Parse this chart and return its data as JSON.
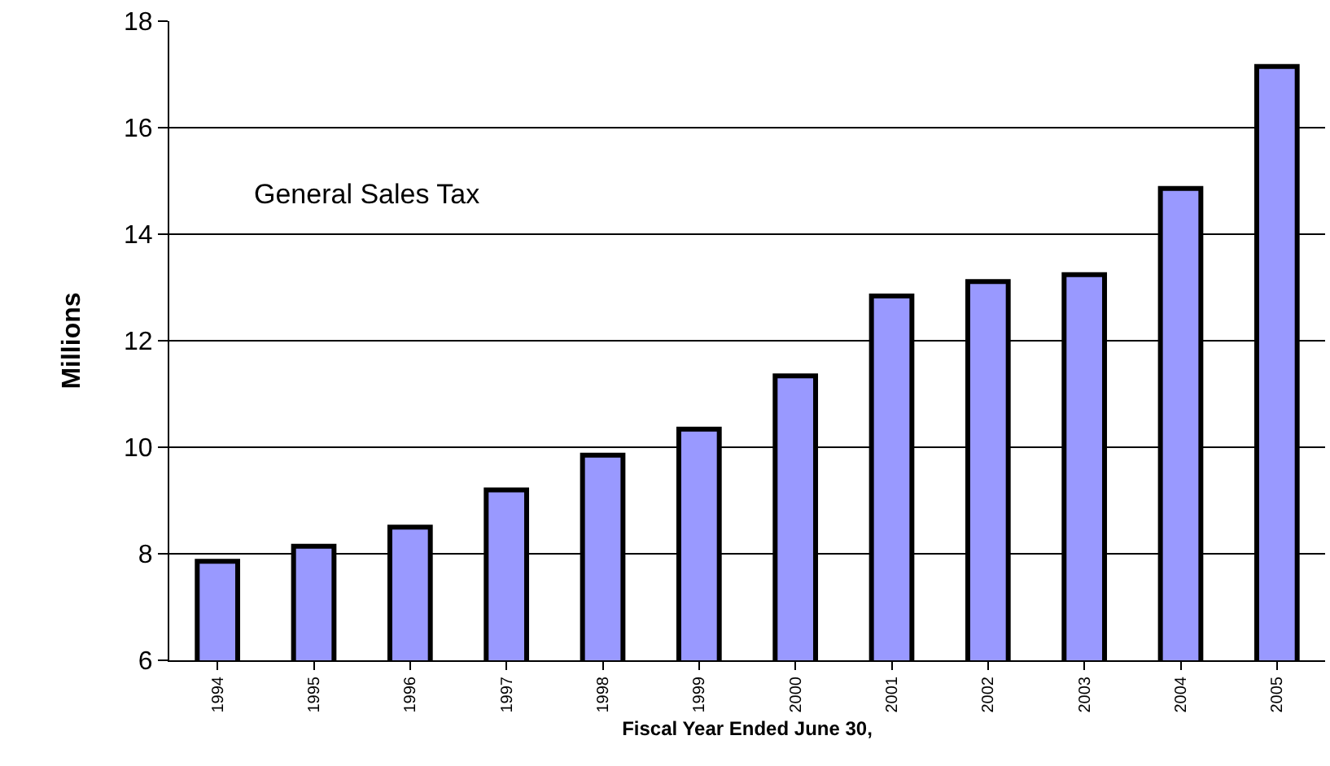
{
  "chart_data": {
    "type": "bar",
    "xlabel": "Fiscal Year Ended June 30,",
    "ylabel": "Millions",
    "annotations": [
      "General Sales Tax"
    ],
    "categories": [
      "1994",
      "1995",
      "1996",
      "1997",
      "1998",
      "1999",
      "2000",
      "2001",
      "2002",
      "2003",
      "2004",
      "2005"
    ],
    "values": [
      7.86,
      8.14,
      8.5,
      9.2,
      9.85,
      10.34,
      11.34,
      12.84,
      13.11,
      13.24,
      14.86,
      17.15
    ],
    "color": "#9999ff",
    "ylim": [
      6,
      18
    ],
    "yticks": [
      6,
      8,
      10,
      12,
      14,
      16,
      18
    ],
    "grid": "y"
  }
}
